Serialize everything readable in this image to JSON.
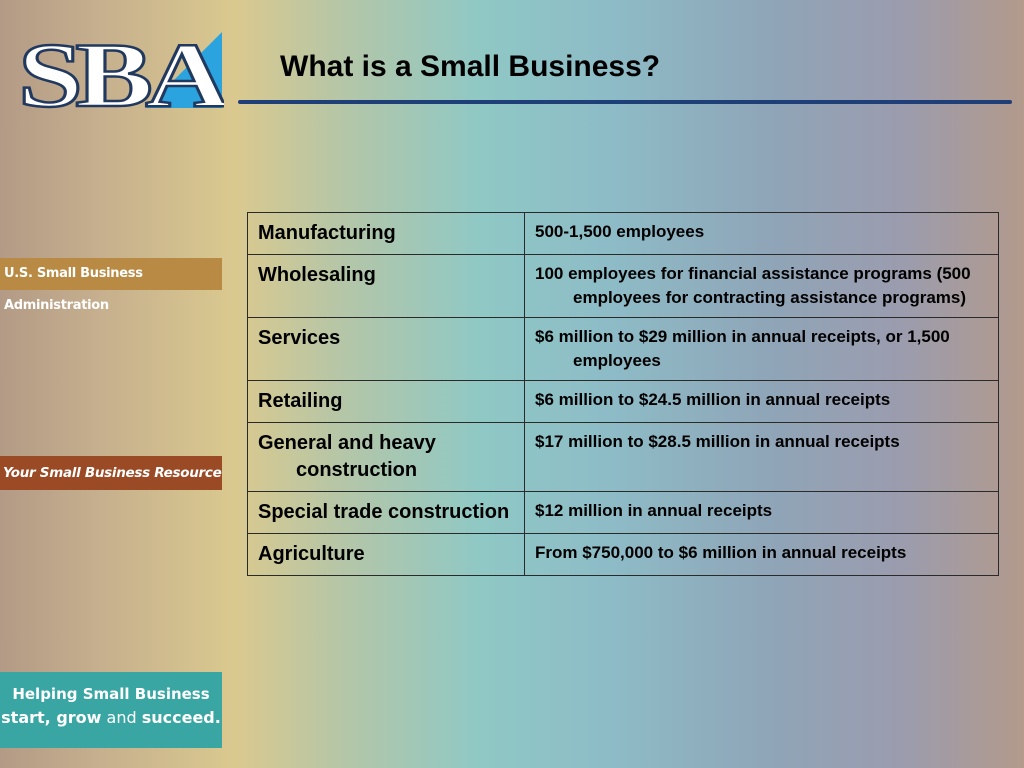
{
  "logo": {
    "text": "SBA"
  },
  "title": "What is a Small Business?",
  "side_banners": {
    "agency": "U.S. Small Business Administration",
    "resource": "Your Small Business Resource",
    "helping_line1": "Helping Small Business",
    "helping_start": "start",
    "helping_comma": ", ",
    "helping_grow": "grow",
    "helping_and": " and ",
    "helping_succeed": "succeed",
    "helping_period": "."
  },
  "size_standards": [
    {
      "industry": "Manufacturing",
      "standard": "500-1,500 employees"
    },
    {
      "industry": "Wholesaling",
      "standard": "100 employees for financial assistance programs  (500 employees for contracting assistance programs)"
    },
    {
      "industry": "Services",
      "standard": "$6 million to $29 million in annual receipts, or 1,500 employees"
    },
    {
      "industry": "Retailing",
      "standard": "$6 million to $24.5 million in annual receipts"
    },
    {
      "industry": "General and heavy construction",
      "standard": "$17 million to $28.5 million in annual receipts"
    },
    {
      "industry": "Special trade construction",
      "standard": "$12 million in annual receipts"
    },
    {
      "industry": "Agriculture",
      "standard": "From $750,000 to $6 million in annual receipts"
    }
  ],
  "colors": {
    "title_rule": "#1f3f78",
    "banner_agency": "#b88a44",
    "banner_resource": "#9a4a24",
    "banner_helping": "#3aa6a4"
  }
}
